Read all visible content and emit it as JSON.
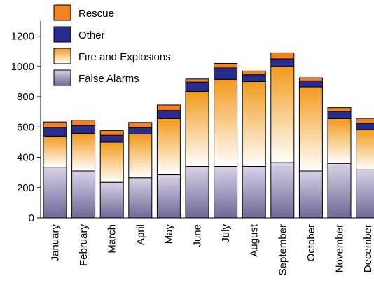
{
  "chart_data": {
    "type": "bar",
    "stacked": true,
    "categories": [
      "January",
      "February",
      "March",
      "April",
      "May",
      "June",
      "July",
      "August",
      "September",
      "October",
      "November",
      "December"
    ],
    "series": [
      {
        "name": "False Alarms",
        "values": [
          335,
          310,
          235,
          265,
          285,
          340,
          340,
          340,
          365,
          310,
          360,
          318
        ],
        "color_top": "#d9d2e6",
        "color_bottom": "#6e6898"
      },
      {
        "name": "Fire and Explosions",
        "values": [
          205,
          248,
          265,
          288,
          370,
          495,
          575,
          560,
          635,
          555,
          295,
          265
        ],
        "color_top": "#f29a1c",
        "color_bottom": "#ffffff"
      },
      {
        "name": "Other",
        "values": [
          58,
          52,
          45,
          42,
          55,
          62,
          75,
          45,
          50,
          40,
          48,
          42
        ],
        "color": "#262d8f"
      },
      {
        "name": "Rescue",
        "values": [
          35,
          35,
          32,
          35,
          35,
          20,
          30,
          25,
          40,
          20,
          25,
          32
        ],
        "color": "#f58220"
      }
    ],
    "y_ticks": [
      0,
      200,
      400,
      600,
      800,
      1000,
      1200
    ],
    "ylim": [
      0,
      1300
    ],
    "legend_order": [
      "Rescue",
      "Other",
      "Fire and Explosions",
      "False Alarms"
    ],
    "legend_placement": "top-left",
    "grid": false,
    "title": "",
    "xlabel": "",
    "ylabel": ""
  }
}
